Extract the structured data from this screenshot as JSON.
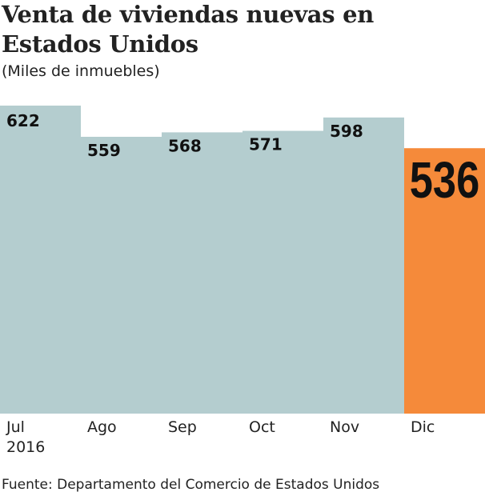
{
  "chart_data": {
    "type": "bar",
    "title": "Venta de viviendas nuevas en Estados Unidos",
    "subtitle": "(Miles de inmuebles)",
    "categories": [
      "Jul\n2016",
      "Ago",
      "Sep",
      "Oct",
      "Nov",
      "Dic"
    ],
    "category_labels": [
      [
        "Jul",
        "2016"
      ],
      [
        "Ago"
      ],
      [
        "Sep"
      ],
      [
        "Oct"
      ],
      [
        "Nov"
      ],
      [
        "Dic"
      ]
    ],
    "values": [
      622,
      559,
      568,
      571,
      598,
      536
    ],
    "data_labels": [
      "622",
      "559",
      "568",
      "571",
      "598",
      "536"
    ],
    "highlight_index": 5,
    "ylim": [
      0,
      622
    ],
    "grid": false,
    "xlabel": "",
    "ylabel": "",
    "colors": {
      "bar": "#b4cdcf",
      "highlight": "#f58a3a",
      "text": "#111111"
    },
    "source": "Fuente: Departamento del Comercio de Estados Unidos"
  }
}
